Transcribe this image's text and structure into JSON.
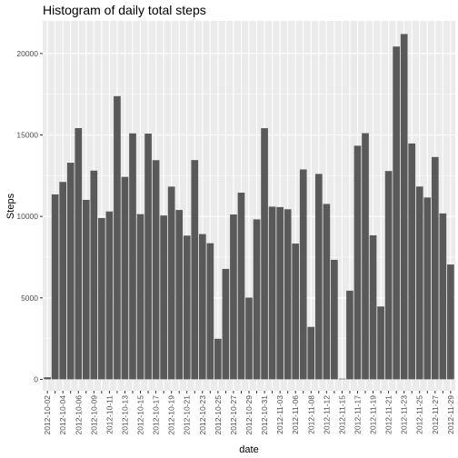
{
  "chart_data": {
    "type": "bar",
    "title": "Histogram of daily total steps",
    "xlabel": "date",
    "ylabel": "Steps",
    "ylim": [
      -700,
      22000
    ],
    "y_ticks": [
      0,
      5000,
      10000,
      15000,
      20000
    ],
    "y_tick_labels": [
      "0",
      "5000",
      "10000",
      "15000",
      "20000"
    ],
    "grid": true,
    "categories": [
      "2012-10-02",
      "2012-10-03",
      "2012-10-04",
      "2012-10-05",
      "2012-10-06",
      "2012-10-07",
      "2012-10-09",
      "2012-10-10",
      "2012-10-11",
      "2012-10-12",
      "2012-10-13",
      "2012-10-14",
      "2012-10-15",
      "2012-10-16",
      "2012-10-17",
      "2012-10-18",
      "2012-10-19",
      "2012-10-20",
      "2012-10-21",
      "2012-10-22",
      "2012-10-23",
      "2012-10-24",
      "2012-10-25",
      "2012-10-26",
      "2012-10-27",
      "2012-10-28",
      "2012-10-29",
      "2012-10-30",
      "2012-10-31",
      "2012-11-02",
      "2012-11-03",
      "2012-11-05",
      "2012-11-06",
      "2012-11-07",
      "2012-11-08",
      "2012-11-11",
      "2012-11-12",
      "2012-11-13",
      "2012-11-15",
      "2012-11-16",
      "2012-11-17",
      "2012-11-18",
      "2012-11-19",
      "2012-11-20",
      "2012-11-21",
      "2012-11-22",
      "2012-11-23",
      "2012-11-24",
      "2012-11-25",
      "2012-11-26",
      "2012-11-27",
      "2012-11-28",
      "2012-11-29"
    ],
    "tick_label_every": 2,
    "values": [
      126,
      11352,
      12116,
      13294,
      15420,
      11015,
      12811,
      9900,
      10304,
      17382,
      12426,
      15098,
      10139,
      15084,
      13452,
      10056,
      11829,
      10395,
      8821,
      13460,
      8918,
      8355,
      2492,
      6778,
      10119,
      11458,
      5018,
      9819,
      15414,
      10600,
      10571,
      10439,
      8334,
      12883,
      3219,
      12608,
      10765,
      7336,
      41,
      5441,
      14339,
      15110,
      8841,
      4472,
      12787,
      20427,
      21194,
      14478,
      11834,
      11162,
      13646,
      10183,
      7047
    ],
    "bar_color": "#595959"
  }
}
